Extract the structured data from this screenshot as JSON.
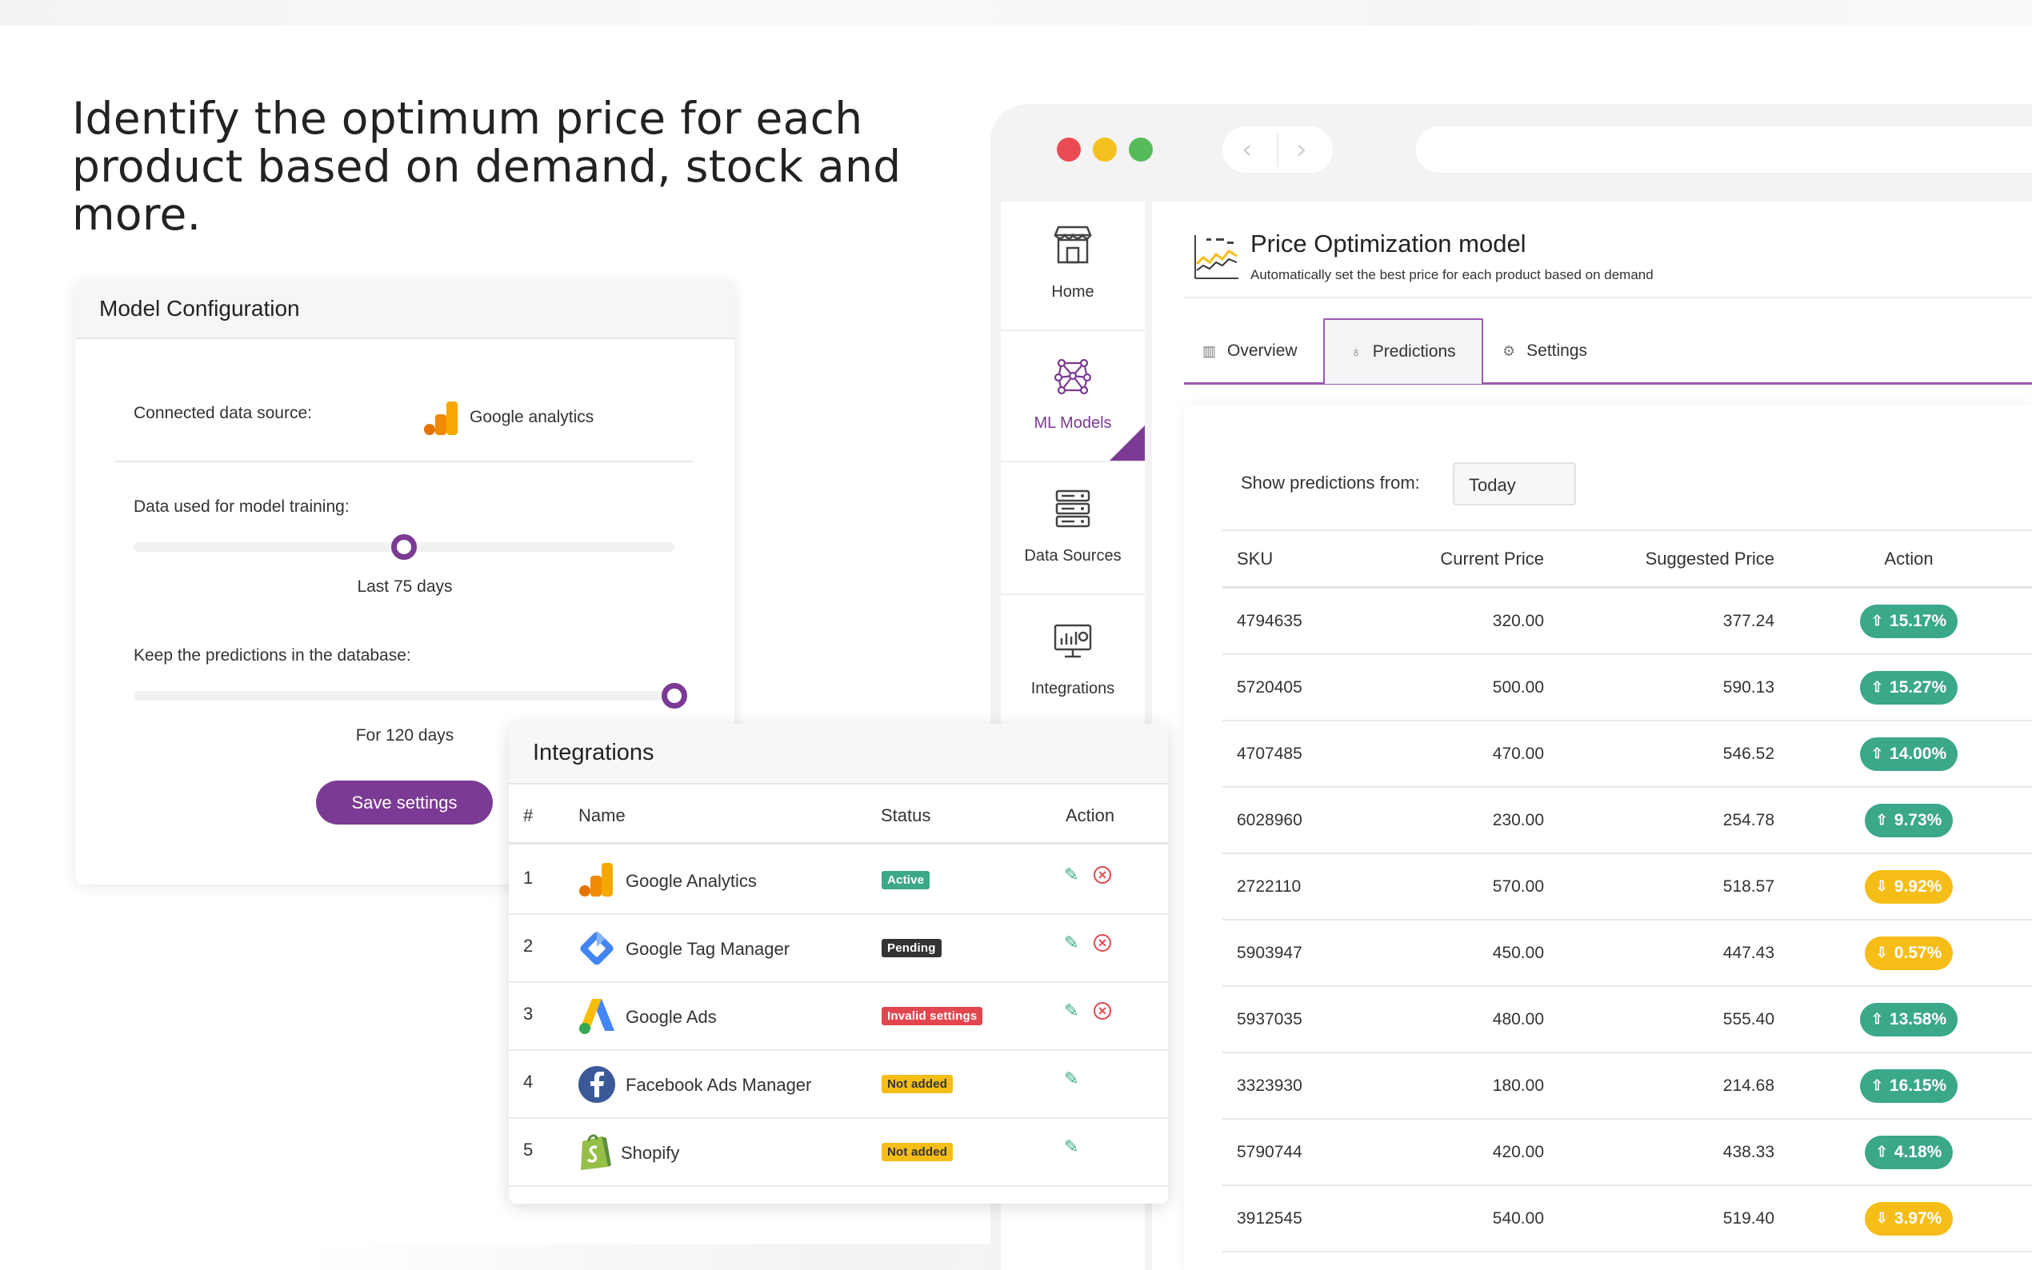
{
  "headline": "Identify the optimum price for each product based on demand, stock and more.",
  "window_controls": {
    "colors": [
      "#ea4b52",
      "#f5c11e",
      "#57bb5a"
    ]
  },
  "sidebar": {
    "items": [
      {
        "label": "Home",
        "icon": "store-icon"
      },
      {
        "label": "ML Models",
        "icon": "network-icon",
        "active": true
      },
      {
        "label": "Data Sources",
        "icon": "server-icon"
      },
      {
        "label": "Integrations",
        "icon": "monitor-chart-icon"
      }
    ]
  },
  "model": {
    "title": "Price Optimization model",
    "subtitle": "Automatically set the best price for each product based on demand"
  },
  "tabs": [
    {
      "label": "Overview",
      "icon": "bar-chart-icon"
    },
    {
      "label": "Predictions",
      "icon": "bulb-icon",
      "active": true
    },
    {
      "label": "Settings",
      "icon": "gear-icon"
    }
  ],
  "predictions": {
    "show_label": "Show predictions from:",
    "show_value": "Today",
    "columns": [
      "SKU",
      "Current Price",
      "Suggested Price",
      "Action"
    ],
    "rows": [
      {
        "sku": "4794635",
        "current": "320.00",
        "suggested": "377.24",
        "action": "15.17%",
        "dir": "up"
      },
      {
        "sku": "5720405",
        "current": "500.00",
        "suggested": "590.13",
        "action": "15.27%",
        "dir": "up"
      },
      {
        "sku": "4707485",
        "current": "470.00",
        "suggested": "546.52",
        "action": "14.00%",
        "dir": "up"
      },
      {
        "sku": "6028960",
        "current": "230.00",
        "suggested": "254.78",
        "action": "9.73%",
        "dir": "up"
      },
      {
        "sku": "2722110",
        "current": "570.00",
        "suggested": "518.57",
        "action": "9.92%",
        "dir": "down"
      },
      {
        "sku": "5903947",
        "current": "450.00",
        "suggested": "447.43",
        "action": "0.57%",
        "dir": "down"
      },
      {
        "sku": "5937035",
        "current": "480.00",
        "suggested": "555.40",
        "action": "13.58%",
        "dir": "up"
      },
      {
        "sku": "3323930",
        "current": "180.00",
        "suggested": "214.68",
        "action": "16.15%",
        "dir": "up"
      },
      {
        "sku": "5790744",
        "current": "420.00",
        "suggested": "438.33",
        "action": "4.18%",
        "dir": "up"
      },
      {
        "sku": "3912545",
        "current": "540.00",
        "suggested": "519.40",
        "action": "3.97%",
        "dir": "down"
      }
    ]
  },
  "model_config": {
    "title": "Model Configuration",
    "connected_label": "Connected data source:",
    "connected_value": "Google analytics",
    "training_label": "Data used for model training:",
    "training_value": "Last 75 days",
    "training_fraction": 0.5,
    "keep_label": "Keep the predictions in the database:",
    "keep_value": "For 120 days",
    "keep_fraction": 1.0,
    "save_label": "Save settings"
  },
  "integrations": {
    "title": "Integrations",
    "columns": [
      "#",
      "Name",
      "Status",
      "Action"
    ],
    "rows": [
      {
        "num": "1",
        "name": "Google Analytics",
        "status": "Active",
        "kind": "active",
        "removable": true
      },
      {
        "num": "2",
        "name": "Google Tag Manager",
        "status": "Pending",
        "kind": "pending",
        "removable": true
      },
      {
        "num": "3",
        "name": "Google Ads",
        "status": "Invalid settings",
        "kind": "invalid",
        "removable": true
      },
      {
        "num": "4",
        "name": "Facebook Ads Manager",
        "status": "Not added",
        "kind": "notadded",
        "removable": false
      },
      {
        "num": "5",
        "name": "Shopify",
        "status": "Not added",
        "kind": "notadded",
        "removable": false
      }
    ]
  },
  "colors": {
    "brand": "#7b3a93",
    "up": "#3aa889",
    "down": "#f6bd17",
    "error": "#e2474f"
  }
}
